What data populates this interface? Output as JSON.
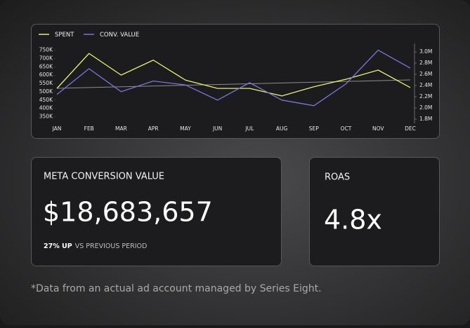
{
  "chart_data": {
    "type": "line",
    "categories": [
      "JAN",
      "FEB",
      "MAR",
      "APR",
      "MAY",
      "JUN",
      "JUL",
      "AUG",
      "SEP",
      "OCT",
      "NOV",
      "DEC"
    ],
    "series": [
      {
        "name": "SPENT",
        "color": "#e2f06a",
        "axis": "y",
        "values": [
          520000,
          730000,
          600000,
          690000,
          570000,
          520000,
          520000,
          475000,
          530000,
          575000,
          630000,
          525000
        ]
      },
      {
        "name": "CONV. VALUE",
        "color": "#7d74d8",
        "axis": "y2",
        "values": [
          2240000,
          2700000,
          2290000,
          2480000,
          2410000,
          2140000,
          2450000,
          2140000,
          2040000,
          2430000,
          3030000,
          2710000
        ]
      }
    ],
    "ylim": [
      310000,
      790000
    ],
    "yticks": [
      {
        "value": 350000,
        "label": "350K"
      },
      {
        "value": 400000,
        "label": "400K"
      },
      {
        "value": 450000,
        "label": "450K"
      },
      {
        "value": 500000,
        "label": "500K"
      },
      {
        "value": 550000,
        "label": "550K"
      },
      {
        "value": 600000,
        "label": "600K"
      },
      {
        "value": 650000,
        "label": "650K"
      },
      {
        "value": 700000,
        "label": "700K"
      },
      {
        "value": 750000,
        "label": "750K"
      }
    ],
    "y2lim": [
      1725000,
      3150000
    ],
    "y2ticks": [
      {
        "value": 1800000,
        "label": "1.8M"
      },
      {
        "value": 2000000,
        "label": "2.0M"
      },
      {
        "value": 2200000,
        "label": "2.2M"
      },
      {
        "value": 2400000,
        "label": "2.4M"
      },
      {
        "value": 2600000,
        "label": "2.6M"
      },
      {
        "value": 2800000,
        "label": "2.8M"
      },
      {
        "value": 3000000,
        "label": "3.0M"
      }
    ],
    "legend": "top-left"
  },
  "kpis": [
    {
      "title": "META CONVERSION VALUE",
      "value": "$18,683,657",
      "change": "27% UP",
      "change_note": "VS PREVIOUS PERIOD"
    },
    {
      "title": "ROAS",
      "value": "4.8x"
    }
  ],
  "footnote": "*Data from an actual ad account managed by Series Eight."
}
